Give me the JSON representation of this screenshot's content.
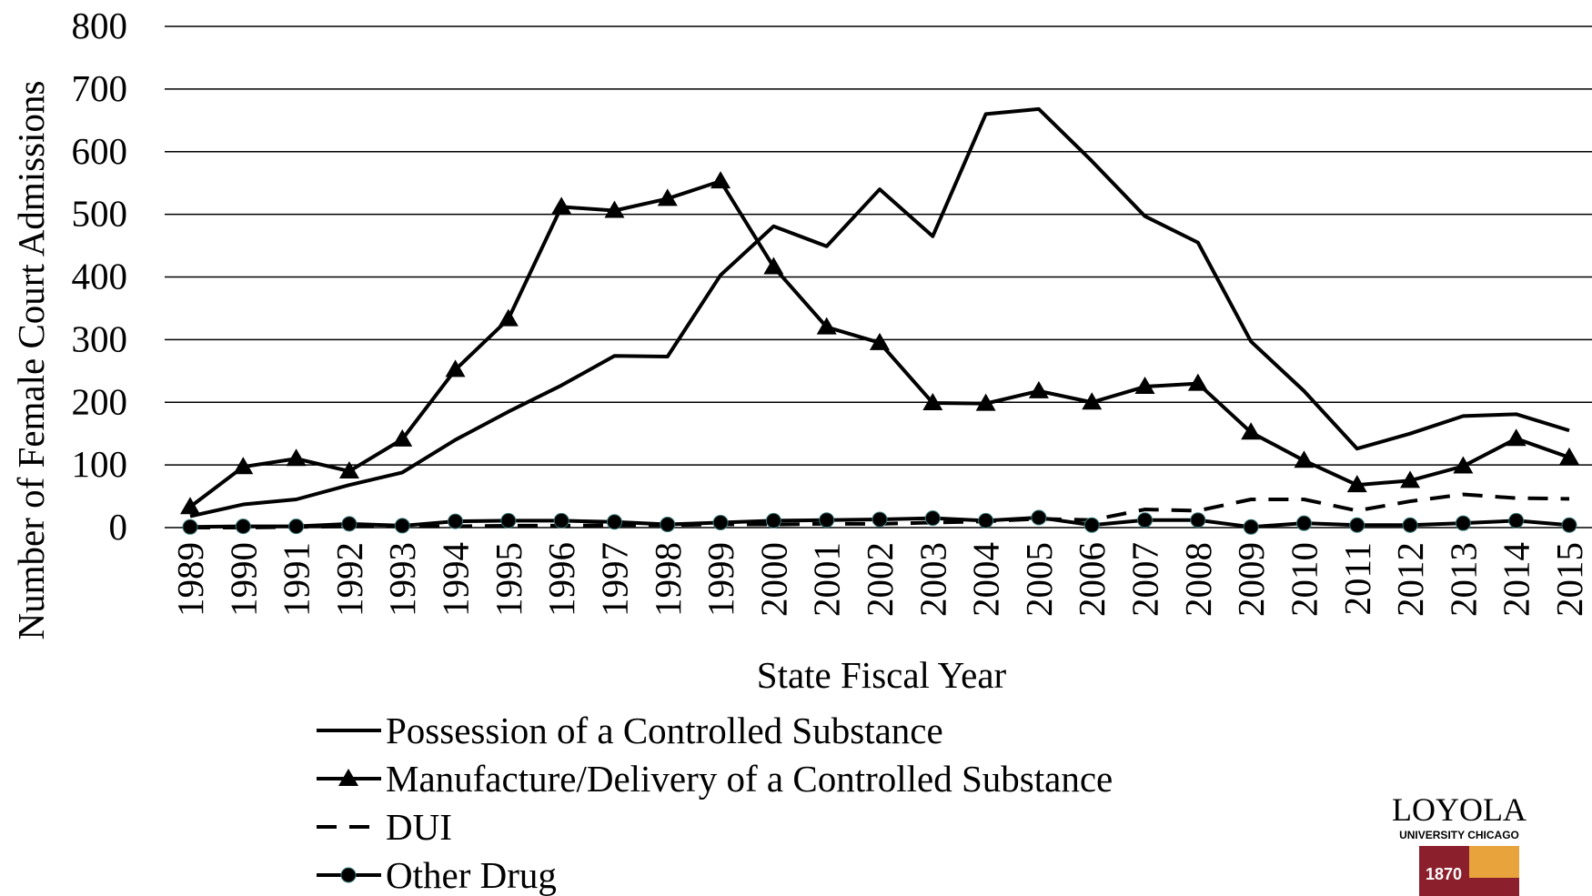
{
  "chart_data": {
    "type": "line",
    "x_label": "State Fiscal Year",
    "y_label": "Number of Female Court Admissions",
    "categories": [
      "1989",
      "1990",
      "1991",
      "1992",
      "1993",
      "1994",
      "1995",
      "1996",
      "1997",
      "1998",
      "1999",
      "2000",
      "2001",
      "2002",
      "2003",
      "2004",
      "2005",
      "2006",
      "2007",
      "2008",
      "2009",
      "2010",
      "2011",
      "2012",
      "2013",
      "2014",
      "2015"
    ],
    "series": [
      {
        "name": "Possession of a Controlled Substance",
        "color": "#000000",
        "dash": "solid",
        "marker": "none",
        "values": [
          18,
          37,
          45,
          68,
          88,
          140,
          185,
          227,
          274,
          273,
          403,
          481,
          449,
          540,
          465,
          660,
          668,
          585,
          497,
          455,
          297,
          218,
          126,
          150,
          178,
          181,
          155
        ]
      },
      {
        "name": "Manufacture/Delivery of a Controlled Substance",
        "color": "#000000",
        "dash": "solid",
        "marker": "triangle",
        "values": [
          33,
          97,
          110,
          90,
          141,
          252,
          333,
          512,
          506,
          525,
          553,
          416,
          320,
          295,
          199,
          198,
          218,
          200,
          225,
          230,
          152,
          107,
          68,
          75,
          98,
          142,
          112
        ]
      },
      {
        "name": "DUI",
        "color": "#000000",
        "dash": "dashed",
        "marker": "none",
        "values": [
          0,
          0,
          1,
          2,
          2,
          2,
          3,
          3,
          4,
          4,
          5,
          5,
          6,
          6,
          8,
          10,
          14,
          12,
          29,
          27,
          45,
          45,
          27,
          42,
          53,
          47,
          46
        ]
      },
      {
        "name": "Other Drug",
        "color": "#000000",
        "dash": "solid",
        "marker": "circle",
        "values": [
          1,
          2,
          2,
          6,
          3,
          10,
          11,
          11,
          9,
          5,
          8,
          11,
          12,
          13,
          15,
          11,
          16,
          4,
          12,
          12,
          1,
          7,
          4,
          4,
          7,
          11,
          4
        ]
      }
    ],
    "ylim": [
      0,
      800
    ],
    "yticks": [
      0,
      100,
      200,
      300,
      400,
      500,
      600,
      700,
      800
    ],
    "grid": true,
    "legend": "bottom"
  },
  "logo": {
    "name": "LOYOLA",
    "subtitle": "UNIVERSITY CHICAGO",
    "year": "1870"
  }
}
